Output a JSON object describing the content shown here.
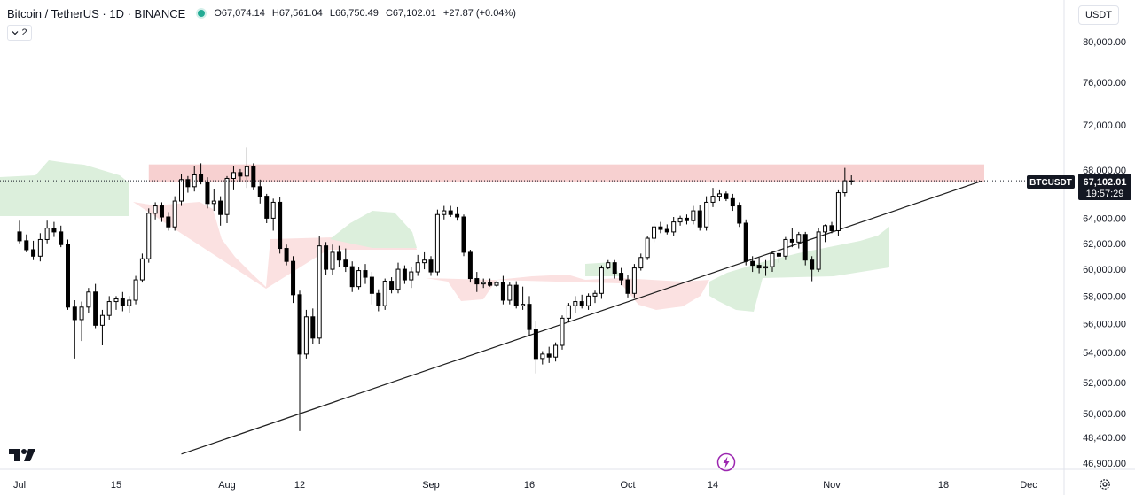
{
  "header": {
    "title": "Bitcoin / TetherUS · 1D · BINANCE",
    "ohlc": {
      "o_label": "O",
      "o": "67,074.14",
      "h_label": "H",
      "h": "67,561.04",
      "l_label": "L",
      "l": "66,750.49",
      "c_label": "C",
      "c": "67,102.01",
      "change": "+27.87 (+0.04%)"
    }
  },
  "indicator_toggle": {
    "count": "2",
    "icon": "chevron-down-icon"
  },
  "currency": "USDT",
  "price_tag": {
    "symbol": "BTCUSDT",
    "price": "67,102.01",
    "countdown": "19:57:29"
  },
  "colors": {
    "up": "#ffffff",
    "down": "#000000",
    "candle_border": "#000000",
    "resistance_zone": "#f6c8c8",
    "cloud_bull": "#dcefdc",
    "cloud_bear": "#fbe1e1",
    "trendline": "#1e1e1e",
    "price_label_bg": "#131722",
    "accent": "#9c27b0"
  },
  "icons": {
    "logo": "tradingview-logo-icon",
    "bolt": "lightning-bolt-icon",
    "settings": "gear-icon"
  },
  "chart_data": {
    "type": "candlestick",
    "title": "Bitcoin / TetherUS · 1D · BINANCE",
    "y_axis": {
      "ticks": [
        80000,
        76000,
        72000,
        68000,
        64000,
        62000,
        60000,
        58000,
        56000,
        54000,
        52000,
        50000,
        48400,
        46900
      ],
      "labels": [
        "80,000.00",
        "76,000.00",
        "72,000.00",
        "68,000.00",
        "64,000.00",
        "62,000.00",
        "60,000.00",
        "58,000.00",
        "56,000.00",
        "54,000.00",
        "52,000.00",
        "50,000.00",
        "48,400.00",
        "46,900.00"
      ],
      "scale": "log"
    },
    "x_axis": {
      "labels": [
        "Jul",
        "15",
        "Aug",
        "12",
        "Sep",
        "16",
        "Oct",
        "14",
        "Nov",
        "18",
        "Dec"
      ],
      "dates": [
        "2024-07-01",
        "2024-07-15",
        "2024-08-01",
        "2024-08-12",
        "2024-09-01",
        "2024-09-16",
        "2024-10-01",
        "2024-10-14",
        "2024-11-01",
        "2024-11-18",
        "2024-12-01"
      ]
    },
    "candles": [
      {
        "date": "2024-07-01",
        "o": 62900,
        "h": 63800,
        "l": 62000,
        "c": 62200
      },
      {
        "date": "2024-07-02",
        "o": 62200,
        "h": 62700,
        "l": 61300,
        "c": 61500
      },
      {
        "date": "2024-07-03",
        "o": 61500,
        "h": 62200,
        "l": 60700,
        "c": 61000
      },
      {
        "date": "2024-07-04",
        "o": 61000,
        "h": 62800,
        "l": 60600,
        "c": 62300
      },
      {
        "date": "2024-07-05",
        "o": 62300,
        "h": 63800,
        "l": 62000,
        "c": 63200
      },
      {
        "date": "2024-07-06",
        "o": 63200,
        "h": 63700,
        "l": 62500,
        "c": 62900
      },
      {
        "date": "2024-07-07",
        "o": 62900,
        "h": 63400,
        "l": 61700,
        "c": 61900
      },
      {
        "date": "2024-07-08",
        "o": 61900,
        "h": 62300,
        "l": 57000,
        "c": 57200
      },
      {
        "date": "2024-07-09",
        "o": 57200,
        "h": 57700,
        "l": 53600,
        "c": 56300
      },
      {
        "date": "2024-07-10",
        "o": 56300,
        "h": 57600,
        "l": 54800,
        "c": 57200
      },
      {
        "date": "2024-07-11",
        "o": 57200,
        "h": 58600,
        "l": 56800,
        "c": 58300
      },
      {
        "date": "2024-07-12",
        "o": 58300,
        "h": 58900,
        "l": 55700,
        "c": 55900
      },
      {
        "date": "2024-07-13",
        "o": 55900,
        "h": 57000,
        "l": 54500,
        "c": 56600
      },
      {
        "date": "2024-07-14",
        "o": 56600,
        "h": 58000,
        "l": 56300,
        "c": 57600
      },
      {
        "date": "2024-07-15",
        "o": 57600,
        "h": 58000,
        "l": 57000,
        "c": 57800
      },
      {
        "date": "2024-07-16",
        "o": 57800,
        "h": 58300,
        "l": 56900,
        "c": 57300
      },
      {
        "date": "2024-07-17",
        "o": 57300,
        "h": 58000,
        "l": 56800,
        "c": 57700
      },
      {
        "date": "2024-07-18",
        "o": 57700,
        "h": 59500,
        "l": 57400,
        "c": 59200
      },
      {
        "date": "2024-07-19",
        "o": 59200,
        "h": 61200,
        "l": 59000,
        "c": 60800
      },
      {
        "date": "2024-07-20",
        "o": 60800,
        "h": 64800,
        "l": 60500,
        "c": 64400
      },
      {
        "date": "2024-07-21",
        "o": 64400,
        "h": 65300,
        "l": 63900,
        "c": 65000
      },
      {
        "date": "2024-07-22",
        "o": 65000,
        "h": 65300,
        "l": 63700,
        "c": 64100
      },
      {
        "date": "2024-07-23",
        "o": 64100,
        "h": 64500,
        "l": 63000,
        "c": 63300
      },
      {
        "date": "2024-07-24",
        "o": 63300,
        "h": 65800,
        "l": 63000,
        "c": 65400
      },
      {
        "date": "2024-07-25",
        "o": 65400,
        "h": 67700,
        "l": 65000,
        "c": 67200
      },
      {
        "date": "2024-07-26",
        "o": 67200,
        "h": 67500,
        "l": 66100,
        "c": 66600
      },
      {
        "date": "2024-07-27",
        "o": 66600,
        "h": 68400,
        "l": 66200,
        "c": 67600
      },
      {
        "date": "2024-07-28",
        "o": 67600,
        "h": 68600,
        "l": 66800,
        "c": 67000
      },
      {
        "date": "2024-07-29",
        "o": 67000,
        "h": 67400,
        "l": 64800,
        "c": 65200
      },
      {
        "date": "2024-07-30",
        "o": 65200,
        "h": 66400,
        "l": 64600,
        "c": 65400
      },
      {
        "date": "2024-07-31",
        "o": 65400,
        "h": 65800,
        "l": 63400,
        "c": 64300
      },
      {
        "date": "2024-08-01",
        "o": 64300,
        "h": 67500,
        "l": 63600,
        "c": 67300
      },
      {
        "date": "2024-08-02",
        "o": 67300,
        "h": 68400,
        "l": 66300,
        "c": 67800
      },
      {
        "date": "2024-08-03",
        "o": 67800,
        "h": 68100,
        "l": 67000,
        "c": 67500
      },
      {
        "date": "2024-08-04",
        "o": 67500,
        "h": 70000,
        "l": 66500,
        "c": 68300
      },
      {
        "date": "2024-08-05",
        "o": 68300,
        "h": 68600,
        "l": 66300,
        "c": 66600
      },
      {
        "date": "2024-08-06",
        "o": 66600,
        "h": 67200,
        "l": 65200,
        "c": 65800
      },
      {
        "date": "2024-08-07",
        "o": 65800,
        "h": 66000,
        "l": 63600,
        "c": 64000
      },
      {
        "date": "2024-08-08",
        "o": 64000,
        "h": 65600,
        "l": 63000,
        "c": 65300
      },
      {
        "date": "2024-08-09",
        "o": 65300,
        "h": 65700,
        "l": 61200,
        "c": 61600
      },
      {
        "date": "2024-08-10",
        "o": 61600,
        "h": 61900,
        "l": 60300,
        "c": 60600
      },
      {
        "date": "2024-08-11",
        "o": 60600,
        "h": 61000,
        "l": 57500,
        "c": 58100
      },
      {
        "date": "2024-08-12",
        "o": 58100,
        "h": 58400,
        "l": 48900,
        "c": 53900
      },
      {
        "date": "2024-08-13",
        "o": 53900,
        "h": 57000,
        "l": 53600,
        "c": 56500
      },
      {
        "date": "2024-08-14",
        "o": 56500,
        "h": 57100,
        "l": 54600,
        "c": 55000
      },
      {
        "date": "2024-08-15",
        "o": 55000,
        "h": 62600,
        "l": 54600,
        "c": 61800
      },
      {
        "date": "2024-08-16",
        "o": 61800,
        "h": 62100,
        "l": 59600,
        "c": 60000
      },
      {
        "date": "2024-08-17",
        "o": 60000,
        "h": 61900,
        "l": 59600,
        "c": 61300
      },
      {
        "date": "2024-08-18",
        "o": 61300,
        "h": 61800,
        "l": 60200,
        "c": 60700
      },
      {
        "date": "2024-08-19",
        "o": 60700,
        "h": 61600,
        "l": 59800,
        "c": 60200
      },
      {
        "date": "2024-08-20",
        "o": 60200,
        "h": 60600,
        "l": 58300,
        "c": 58700
      },
      {
        "date": "2024-08-21",
        "o": 58700,
        "h": 60200,
        "l": 58500,
        "c": 59900
      },
      {
        "date": "2024-08-22",
        "o": 59900,
        "h": 60400,
        "l": 58900,
        "c": 59400
      },
      {
        "date": "2024-08-23",
        "o": 59400,
        "h": 59800,
        "l": 57400,
        "c": 58200
      },
      {
        "date": "2024-08-24",
        "o": 58200,
        "h": 58500,
        "l": 56900,
        "c": 57300
      },
      {
        "date": "2024-08-25",
        "o": 57300,
        "h": 59300,
        "l": 57000,
        "c": 59100
      },
      {
        "date": "2024-08-26",
        "o": 59100,
        "h": 59400,
        "l": 58200,
        "c": 58500
      },
      {
        "date": "2024-08-27",
        "o": 58500,
        "h": 60500,
        "l": 58200,
        "c": 60000
      },
      {
        "date": "2024-08-28",
        "o": 60000,
        "h": 60300,
        "l": 58900,
        "c": 59200
      },
      {
        "date": "2024-08-29",
        "o": 59200,
        "h": 60200,
        "l": 58600,
        "c": 59800
      },
      {
        "date": "2024-08-30",
        "o": 59800,
        "h": 61100,
        "l": 59500,
        "c": 60500
      },
      {
        "date": "2024-08-31",
        "o": 60500,
        "h": 61300,
        "l": 60000,
        "c": 60700
      },
      {
        "date": "2024-09-01",
        "o": 60700,
        "h": 61000,
        "l": 59500,
        "c": 59800
      },
      {
        "date": "2024-09-02",
        "o": 59800,
        "h": 64700,
        "l": 59500,
        "c": 64300
      },
      {
        "date": "2024-09-03",
        "o": 64300,
        "h": 65000,
        "l": 63900,
        "c": 64600
      },
      {
        "date": "2024-09-04",
        "o": 64600,
        "h": 65000,
        "l": 64100,
        "c": 64300
      },
      {
        "date": "2024-09-05",
        "o": 64300,
        "h": 64900,
        "l": 63800,
        "c": 64100
      },
      {
        "date": "2024-09-06",
        "o": 64100,
        "h": 64300,
        "l": 61000,
        "c": 61300
      },
      {
        "date": "2024-09-07",
        "o": 61300,
        "h": 61500,
        "l": 59000,
        "c": 59300
      },
      {
        "date": "2024-09-08",
        "o": 59300,
        "h": 59800,
        "l": 58300,
        "c": 58900
      },
      {
        "date": "2024-09-09",
        "o": 58900,
        "h": 59300,
        "l": 58600,
        "c": 59000
      },
      {
        "date": "2024-09-10",
        "o": 59000,
        "h": 59300,
        "l": 58700,
        "c": 58800
      },
      {
        "date": "2024-09-11",
        "o": 58800,
        "h": 59100,
        "l": 58700,
        "c": 59000
      },
      {
        "date": "2024-09-12",
        "o": 59000,
        "h": 59500,
        "l": 57400,
        "c": 57700
      },
      {
        "date": "2024-09-13",
        "o": 57700,
        "h": 59000,
        "l": 57400,
        "c": 58800
      },
      {
        "date": "2024-09-14",
        "o": 58800,
        "h": 59100,
        "l": 57100,
        "c": 57300
      },
      {
        "date": "2024-09-15",
        "o": 57300,
        "h": 58700,
        "l": 57000,
        "c": 57400
      },
      {
        "date": "2024-09-16",
        "o": 57400,
        "h": 58000,
        "l": 55200,
        "c": 55600
      },
      {
        "date": "2024-09-17",
        "o": 55600,
        "h": 56200,
        "l": 52600,
        "c": 53600
      },
      {
        "date": "2024-09-18",
        "o": 53600,
        "h": 54100,
        "l": 53200,
        "c": 53900
      },
      {
        "date": "2024-09-19",
        "o": 53900,
        "h": 54400,
        "l": 53300,
        "c": 53700
      },
      {
        "date": "2024-09-20",
        "o": 53700,
        "h": 54700,
        "l": 53400,
        "c": 54500
      },
      {
        "date": "2024-09-21",
        "o": 54500,
        "h": 56600,
        "l": 54200,
        "c": 56400
      },
      {
        "date": "2024-09-22",
        "o": 56400,
        "h": 57500,
        "l": 56100,
        "c": 57300
      },
      {
        "date": "2024-09-23",
        "o": 57300,
        "h": 58000,
        "l": 56800,
        "c": 57600
      },
      {
        "date": "2024-09-24",
        "o": 57600,
        "h": 58100,
        "l": 57100,
        "c": 57300
      },
      {
        "date": "2024-09-25",
        "o": 57300,
        "h": 58200,
        "l": 57000,
        "c": 58000
      },
      {
        "date": "2024-09-26",
        "o": 58000,
        "h": 58400,
        "l": 57500,
        "c": 58200
      },
      {
        "date": "2024-09-27",
        "o": 58200,
        "h": 60300,
        "l": 57800,
        "c": 60100
      },
      {
        "date": "2024-09-28",
        "o": 60100,
        "h": 60700,
        "l": 60000,
        "c": 60500
      },
      {
        "date": "2024-09-29",
        "o": 60500,
        "h": 60700,
        "l": 59300,
        "c": 59700
      },
      {
        "date": "2024-09-30",
        "o": 59700,
        "h": 60100,
        "l": 58800,
        "c": 59200
      },
      {
        "date": "2024-10-01",
        "o": 59200,
        "h": 59600,
        "l": 57900,
        "c": 58200
      },
      {
        "date": "2024-10-02",
        "o": 58200,
        "h": 60400,
        "l": 57900,
        "c": 60100
      },
      {
        "date": "2024-10-03",
        "o": 60100,
        "h": 61200,
        "l": 59900,
        "c": 60900
      },
      {
        "date": "2024-10-04",
        "o": 60900,
        "h": 62600,
        "l": 60700,
        "c": 62400
      },
      {
        "date": "2024-10-05",
        "o": 62400,
        "h": 63600,
        "l": 62100,
        "c": 63300
      },
      {
        "date": "2024-10-06",
        "o": 63300,
        "h": 63700,
        "l": 62800,
        "c": 63100
      },
      {
        "date": "2024-10-07",
        "o": 63100,
        "h": 63500,
        "l": 62700,
        "c": 62900
      },
      {
        "date": "2024-10-08",
        "o": 62900,
        "h": 64100,
        "l": 62600,
        "c": 63700
      },
      {
        "date": "2024-10-09",
        "o": 63700,
        "h": 64200,
        "l": 63400,
        "c": 64000
      },
      {
        "date": "2024-10-10",
        "o": 64000,
        "h": 64300,
        "l": 63500,
        "c": 63800
      },
      {
        "date": "2024-10-11",
        "o": 63800,
        "h": 65000,
        "l": 63500,
        "c": 64600
      },
      {
        "date": "2024-10-12",
        "o": 64600,
        "h": 65100,
        "l": 63000,
        "c": 63300
      },
      {
        "date": "2024-10-13",
        "o": 63300,
        "h": 65800,
        "l": 63000,
        "c": 65300
      },
      {
        "date": "2024-10-14",
        "o": 65300,
        "h": 66500,
        "l": 64900,
        "c": 65800
      },
      {
        "date": "2024-10-15",
        "o": 65800,
        "h": 66300,
        "l": 65400,
        "c": 66000
      },
      {
        "date": "2024-10-16",
        "o": 66000,
        "h": 66200,
        "l": 65400,
        "c": 65600
      },
      {
        "date": "2024-10-17",
        "o": 65600,
        "h": 66000,
        "l": 64600,
        "c": 65000
      },
      {
        "date": "2024-10-18",
        "o": 65000,
        "h": 65300,
        "l": 63300,
        "c": 63600
      },
      {
        "date": "2024-10-19",
        "o": 63600,
        "h": 63900,
        "l": 60300,
        "c": 60600
      },
      {
        "date": "2024-10-20",
        "o": 60600,
        "h": 61000,
        "l": 59800,
        "c": 60300
      },
      {
        "date": "2024-10-21",
        "o": 60300,
        "h": 60900,
        "l": 59700,
        "c": 60100
      },
      {
        "date": "2024-10-22",
        "o": 60100,
        "h": 60700,
        "l": 59500,
        "c": 60200
      },
      {
        "date": "2024-10-23",
        "o": 60200,
        "h": 61400,
        "l": 59800,
        "c": 61200
      },
      {
        "date": "2024-10-24",
        "o": 61200,
        "h": 61600,
        "l": 60500,
        "c": 61000
      },
      {
        "date": "2024-10-25",
        "o": 61000,
        "h": 62500,
        "l": 60700,
        "c": 62300
      },
      {
        "date": "2024-10-26",
        "o": 62300,
        "h": 63200,
        "l": 61700,
        "c": 62100
      },
      {
        "date": "2024-10-27",
        "o": 62100,
        "h": 62900,
        "l": 61600,
        "c": 62700
      },
      {
        "date": "2024-10-28",
        "o": 62700,
        "h": 62900,
        "l": 60300,
        "c": 60700
      },
      {
        "date": "2024-10-29",
        "o": 60700,
        "h": 61000,
        "l": 59100,
        "c": 60000
      },
      {
        "date": "2024-10-30",
        "o": 60000,
        "h": 63200,
        "l": 59800,
        "c": 62900
      },
      {
        "date": "2024-10-31",
        "o": 62900,
        "h": 63500,
        "l": 62100,
        "c": 63400
      },
      {
        "date": "2024-11-01",
        "o": 63400,
        "h": 63700,
        "l": 62800,
        "c": 63000
      },
      {
        "date": "2024-11-02",
        "o": 63000,
        "h": 66300,
        "l": 62600,
        "c": 66100
      },
      {
        "date": "2024-11-03",
        "o": 66100,
        "h": 68200,
        "l": 65800,
        "c": 67100
      },
      {
        "date": "2024-11-04",
        "o": 67074.14,
        "h": 67561.04,
        "l": 66750.49,
        "c": 67102.01
      }
    ],
    "resistance_zone": {
      "from_date": "2024-07-20",
      "to_date": "2024-12-01",
      "low": 67000,
      "high": 68500
    },
    "trendline": {
      "from_date": "2024-07-25",
      "from_price": 47500,
      "to_date": "2024-12-01",
      "to_price": 67102
    },
    "current_price": 67102.01,
    "grid": false,
    "legend": "none"
  }
}
